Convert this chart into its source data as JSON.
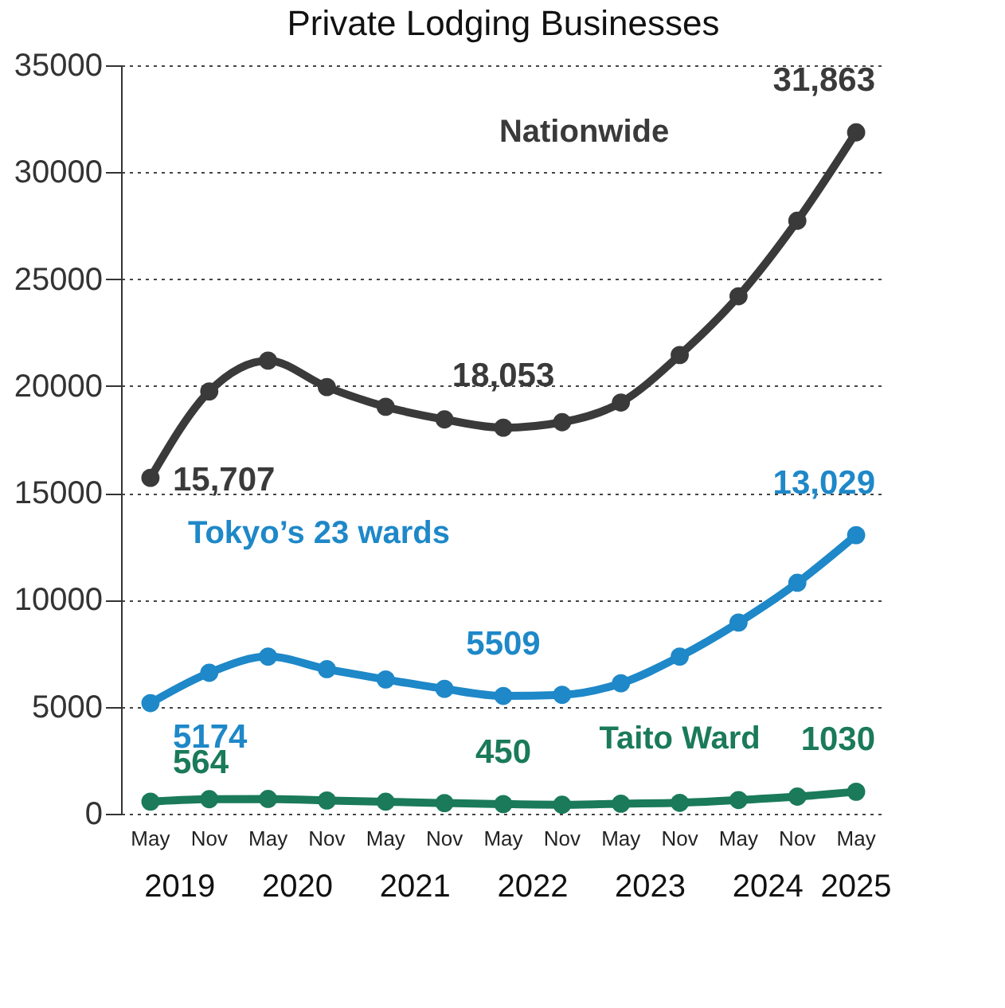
{
  "chart_data": {
    "type": "line",
    "title": "Private Lodging Businesses",
    "categories": [
      "May",
      "Nov",
      "May",
      "Nov",
      "May",
      "Nov",
      "May",
      "Nov",
      "May",
      "Nov",
      "May",
      "Nov",
      "May"
    ],
    "series": [
      {
        "name": "Nationwide",
        "color": "#3a3a3a",
        "values": [
          15707,
          19750,
          21190,
          19950,
          19030,
          18440,
          18053,
          18310,
          19230,
          21450,
          24200,
          27730,
          31863
        ],
        "value_labels": [
          "15,707",
          null,
          null,
          null,
          null,
          null,
          "18,053",
          null,
          null,
          null,
          null,
          null,
          "31,863"
        ]
      },
      {
        "name": "Tokyo’s 23 wards",
        "color": "#1e88c8",
        "values": [
          5174,
          6590,
          7350,
          6760,
          6280,
          5840,
          5509,
          5560,
          6100,
          7350,
          8940,
          10800,
          13029
        ],
        "value_labels": [
          "5174",
          null,
          null,
          null,
          null,
          null,
          "5509",
          null,
          null,
          null,
          null,
          null,
          "13,029"
        ]
      },
      {
        "name": "Taito Ward",
        "color": "#1a7a5a",
        "values": [
          564,
          680,
          690,
          620,
          560,
          500,
          450,
          420,
          470,
          510,
          640,
          800,
          1030
        ],
        "value_labels": [
          "564",
          null,
          null,
          null,
          null,
          null,
          "450",
          null,
          null,
          null,
          null,
          null,
          "1030"
        ]
      }
    ],
    "annotations": [
      "2019",
      "2020",
      "2021",
      "2022",
      "2023",
      "2024",
      "2025"
    ],
    "ylim": [
      0,
      35000
    ],
    "yticks": [
      0,
      5000,
      10000,
      15000,
      20000,
      25000,
      30000,
      35000
    ],
    "grid": "y",
    "marker": "circle",
    "line_style": "solid",
    "legend": false
  }
}
